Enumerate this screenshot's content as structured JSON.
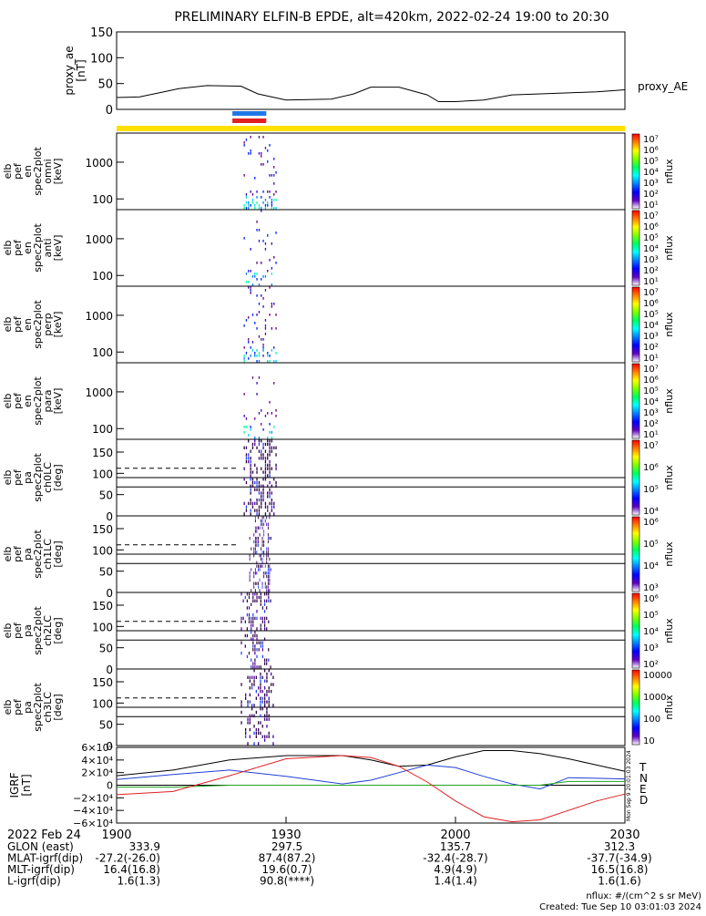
{
  "title": "PRELIMINARY ELFIN-B EPDE, alt=420km, 2022-02-24 19:00 to 20:30",
  "chart_data": [
    {
      "type": "line",
      "panel": "proxy_ae",
      "ylabel_lines": [
        "proxy_ae",
        "[nT]"
      ],
      "legend": "proxy_AE",
      "ylim": [
        0,
        150
      ],
      "yticks": [
        "150",
        "100",
        "50",
        "0"
      ],
      "x_minutes": [
        0,
        4,
        8,
        11,
        16,
        22,
        25,
        30,
        38,
        42,
        45,
        50,
        55,
        57,
        60,
        65,
        70,
        75,
        80,
        85,
        90
      ],
      "values": [
        23,
        24,
        33,
        40,
        46,
        45,
        30,
        18,
        20,
        30,
        43,
        43,
        28,
        15,
        15,
        18,
        28,
        30,
        32,
        34,
        38
      ]
    },
    {
      "type": "heatmap",
      "panel": "omni",
      "ylabel_lines": [
        "elb",
        "pef",
        "en",
        "spec2plot",
        "omni",
        "[keV]"
      ],
      "yticks": [
        "1000",
        "100"
      ],
      "cbar_ticks": [
        "10⁷",
        "10⁶",
        "10⁵",
        "10⁴",
        "10³",
        "10²",
        "10¹"
      ],
      "cbar_label": "nflux",
      "active_minutes": [
        22.5,
        28.5
      ]
    },
    {
      "type": "heatmap",
      "panel": "anti",
      "ylabel_lines": [
        "elb",
        "pef",
        "en",
        "spec2plot",
        "anti",
        "[keV]"
      ],
      "yticks": [
        "1000",
        "100"
      ],
      "cbar_ticks": [
        "10⁷",
        "10⁶",
        "10⁵",
        "10⁴",
        "10³",
        "10²",
        "10¹"
      ],
      "cbar_label": "nflux",
      "active_minutes": [
        22.5,
        28.5
      ]
    },
    {
      "type": "heatmap",
      "panel": "perp",
      "ylabel_lines": [
        "elb",
        "pef",
        "en",
        "spec2plot",
        "perp",
        "[keV]"
      ],
      "yticks": [
        "1000",
        "100"
      ],
      "cbar_ticks": [
        "10⁷",
        "10⁶",
        "10⁵",
        "10⁴",
        "10³",
        "10²",
        "10¹"
      ],
      "cbar_label": "nflux",
      "active_minutes": [
        22.5,
        28.5
      ]
    },
    {
      "type": "heatmap",
      "panel": "para",
      "ylabel_lines": [
        "elb",
        "pef",
        "en",
        "spec2plot",
        "para",
        "[keV]"
      ],
      "yticks": [
        "1000",
        "100"
      ],
      "cbar_ticks": [
        "10⁷",
        "10⁶",
        "10⁵",
        "10⁴",
        "10³",
        "10²",
        "10¹"
      ],
      "cbar_label": "nflux",
      "active_minutes": [
        22.5,
        28.5
      ]
    },
    {
      "type": "heatmap",
      "panel": "ch0LC",
      "ylabel_lines": [
        "elb",
        "pef",
        "pa",
        "spec2plot",
        "ch0LC",
        "[deg]"
      ],
      "ylim": [
        0,
        180
      ],
      "yticks": [
        "150",
        "100",
        "50",
        "0"
      ],
      "loss_cone_deg": [
        112,
        68
      ],
      "cbar_ticks": [
        "10⁷",
        "10⁶",
        "10⁵",
        "10⁴"
      ],
      "cbar_label": "nflux",
      "active_minutes": [
        22.5,
        28.5
      ]
    },
    {
      "type": "heatmap",
      "panel": "ch1LC",
      "ylabel_lines": [
        "elb",
        "pef",
        "pa",
        "spec2plot",
        "ch1LC",
        "[deg]"
      ],
      "ylim": [
        0,
        180
      ],
      "yticks": [
        "150",
        "100",
        "50",
        "0"
      ],
      "loss_cone_deg": [
        112,
        68
      ],
      "cbar_ticks": [
        "10⁶",
        "10⁵",
        "10⁴",
        "10³"
      ],
      "cbar_label": "nflux",
      "active_minutes": [
        23.5,
        27.5
      ]
    },
    {
      "type": "heatmap",
      "panel": "ch2LC",
      "ylabel_lines": [
        "elb",
        "pef",
        "pa",
        "spec2plot",
        "ch2LC",
        "[deg]"
      ],
      "ylim": [
        0,
        180
      ],
      "yticks": [
        "150",
        "100",
        "50",
        "0"
      ],
      "loss_cone_deg": [
        112,
        68
      ],
      "cbar_ticks": [
        "10⁶",
        "10⁵",
        "10⁴",
        "10³",
        "10²"
      ],
      "cbar_label": "nflux",
      "active_minutes": [
        22.0,
        27.5
      ]
    },
    {
      "type": "heatmap",
      "panel": "ch3LC",
      "ylabel_lines": [
        "elb",
        "pef",
        "pa",
        "spec2plot",
        "ch3LC",
        "[deg]"
      ],
      "ylim": [
        0,
        180
      ],
      "yticks": [
        "150",
        "100",
        "50",
        "0"
      ],
      "loss_cone_deg": [
        112,
        68
      ],
      "cbar_ticks": [
        "10000",
        "1000",
        "100",
        "10"
      ],
      "cbar_label": "nflux",
      "active_minutes": [
        22.0,
        28.0
      ]
    },
    {
      "type": "line",
      "panel": "igrf",
      "ylabel_lines": [
        "IGRF",
        "[nT]"
      ],
      "yticks": [
        "6×10⁴",
        "4×10⁴",
        "2×10⁴",
        "0",
        "−2×10⁴",
        "−4×10⁴",
        "−6×10⁴"
      ],
      "ylim": [
        -60000,
        60000
      ],
      "legend": [
        "T",
        "N",
        "E",
        "D"
      ],
      "x_minutes": [
        0,
        10,
        20,
        30,
        40,
        45,
        50,
        55,
        60,
        65,
        70,
        75,
        80,
        85,
        90
      ],
      "series": [
        {
          "name": "T",
          "color": "#000000",
          "values": [
            15000,
            24000,
            40000,
            47000,
            47000,
            40000,
            30000,
            32000,
            45000,
            55000,
            55000,
            50000,
            42000,
            32000,
            22000
          ]
        },
        {
          "name": "N",
          "color": "#1f3fd8",
          "values": [
            9000,
            17000,
            24000,
            14000,
            2000,
            8000,
            20000,
            32000,
            28000,
            14000,
            2000,
            -6000,
            12000,
            11000,
            10000
          ]
        },
        {
          "name": "E",
          "color": "#1fa31f",
          "values": [
            -3000,
            -3000,
            0,
            0,
            0,
            0,
            0,
            0,
            0,
            0,
            0,
            0,
            6000,
            6000,
            6000
          ]
        },
        {
          "name": "D",
          "color": "#e02020",
          "values": [
            -15000,
            -10000,
            15000,
            42000,
            47000,
            44000,
            30000,
            5000,
            -25000,
            -50000,
            -58000,
            -55000,
            -40000,
            -25000,
            -14000
          ]
        }
      ]
    }
  ],
  "xaxis": {
    "date": "2022 Feb 24",
    "ticks": [
      "1900",
      "1930",
      "2000",
      "2030"
    ]
  },
  "orbit_rows": [
    {
      "label": "GLON (east)",
      "values": [
        "333.9",
        "297.5",
        "135.7",
        "312.3"
      ]
    },
    {
      "label": "MLAT-igrf(dip)",
      "values": [
        "-27.2(-26.0)",
        "87.4(87.2)",
        "-32.4(-28.7)",
        "-37.7(-34.9)"
      ]
    },
    {
      "label": "MLT-igrf(dip)",
      "values": [
        "16.4(16.8)",
        "19.6(0.7)",
        "4.9(4.9)",
        "16.5(16.8)"
      ]
    },
    {
      "label": "L-igrf(dip)",
      "values": [
        "1.6(1.3)",
        "90.8(****)",
        "1.4(1.4)",
        "1.6(1.6)"
      ]
    }
  ],
  "footer": {
    "units": "nflux: #/(cm^2 s sr MeV)",
    "created": "Created: Tue Sep 10 03:01:03 2024",
    "stamp": "Mon Sep 9 20:01:03 2024"
  },
  "colors": {
    "sci_zone_bar": "#ffe000",
    "bar_blue": "#1f78e6",
    "bar_red": "#e02020"
  }
}
